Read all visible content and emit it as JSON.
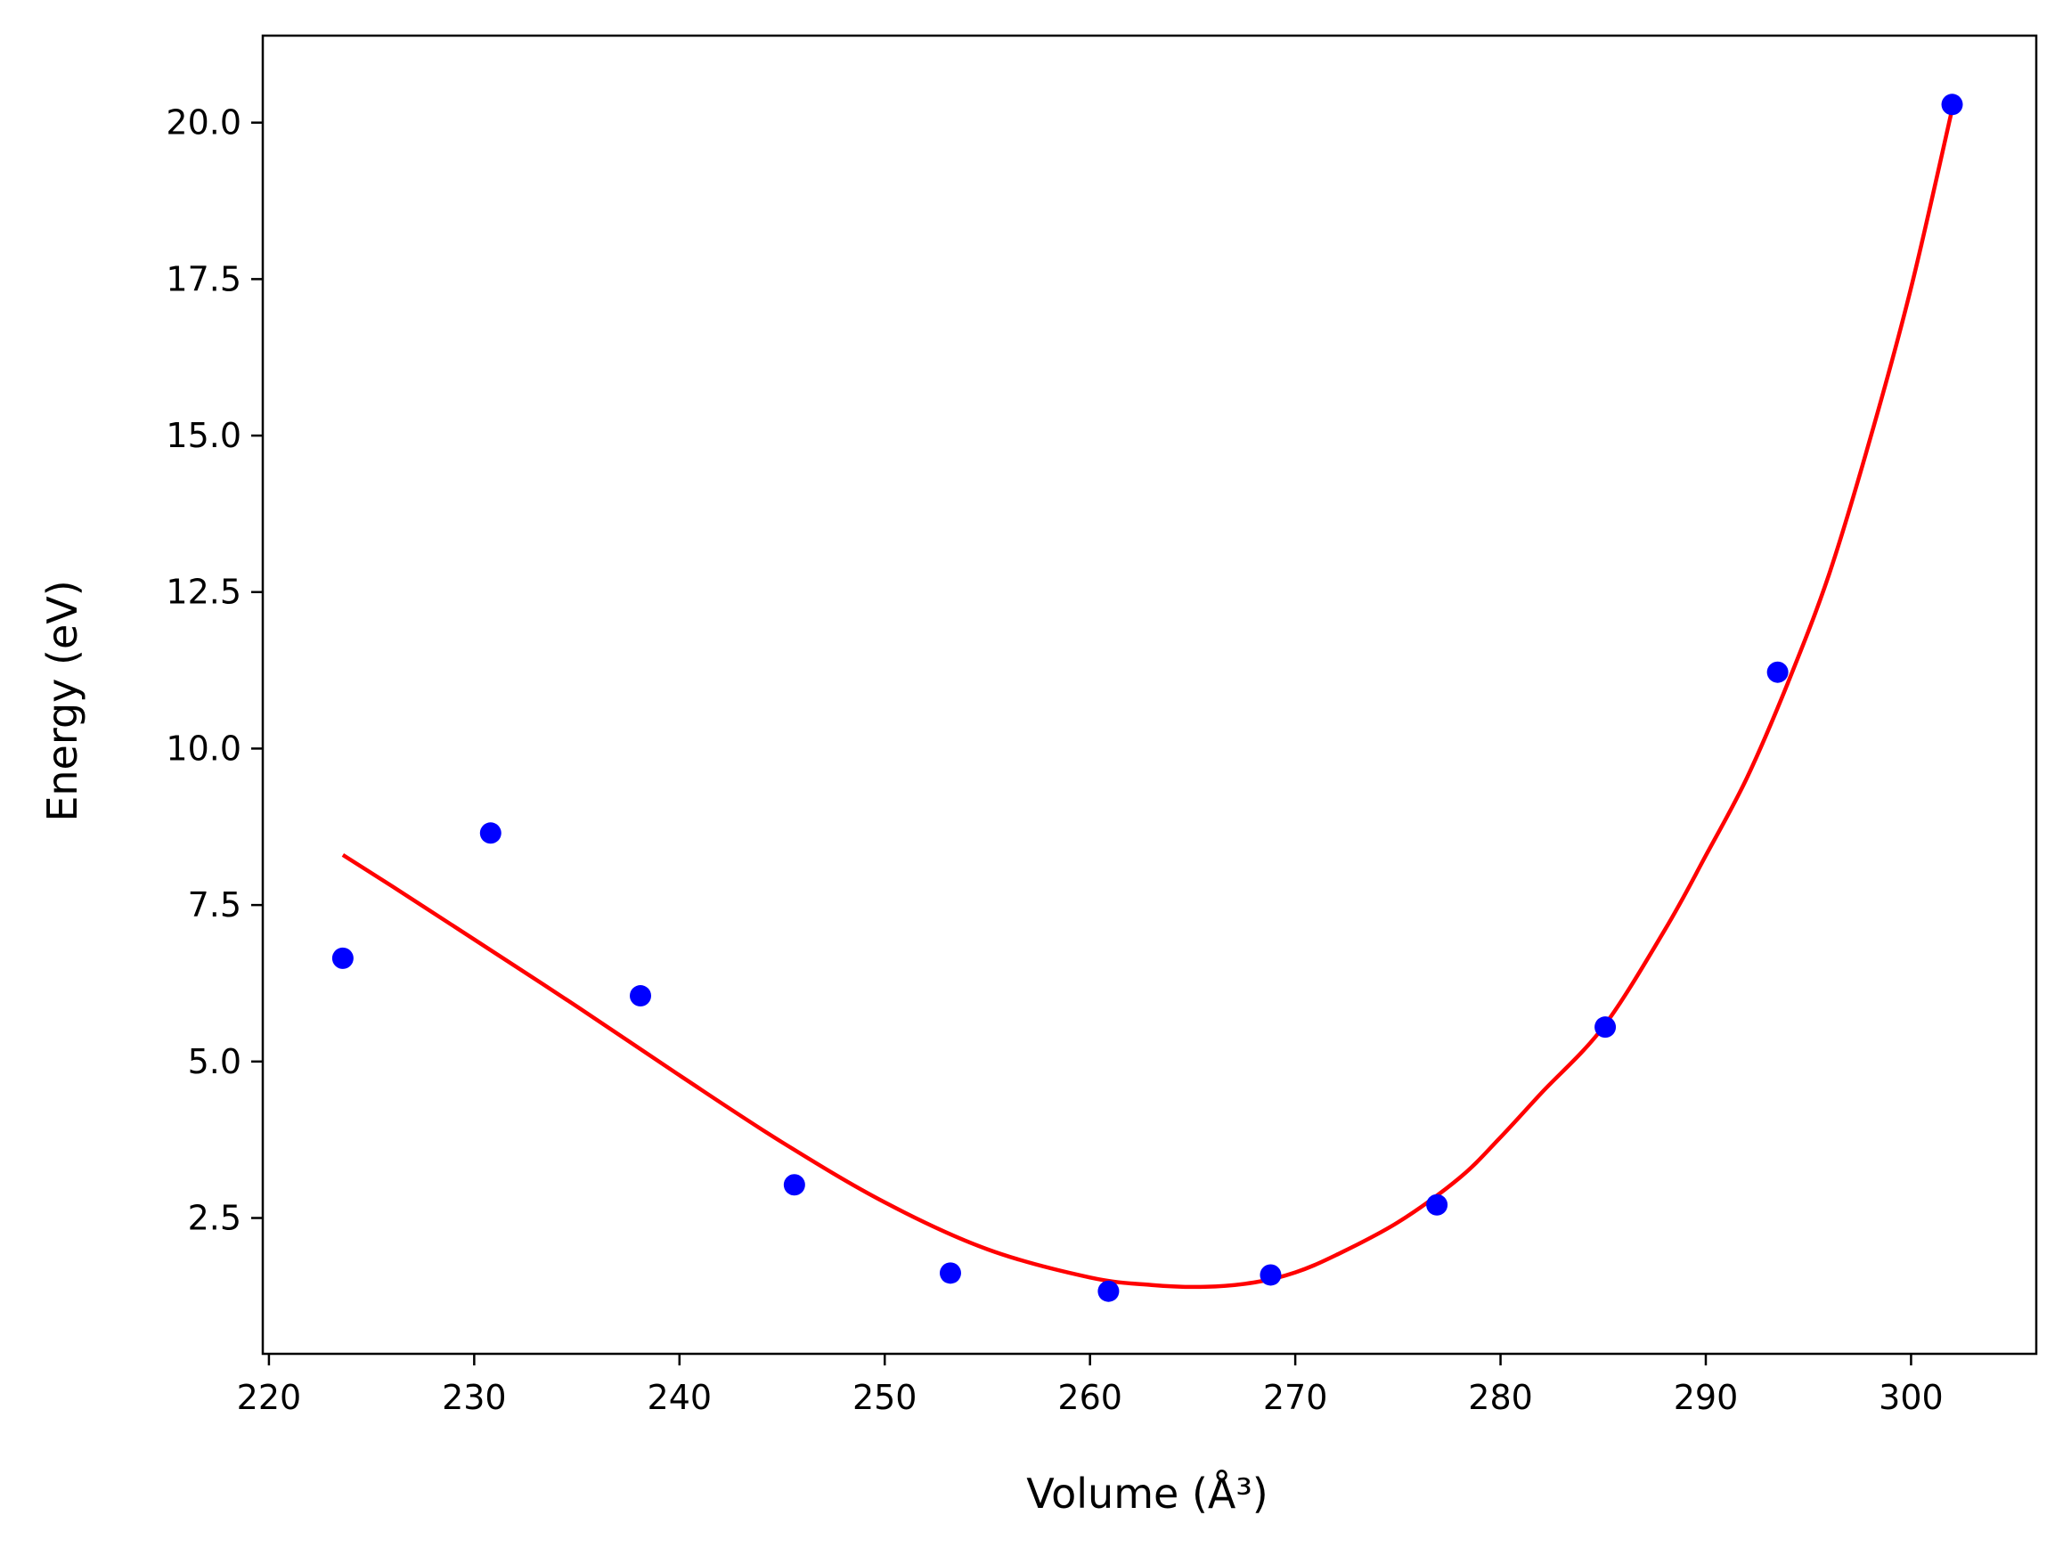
{
  "chart_data": {
    "type": "scatter",
    "xlabel": "Volume (Å³)",
    "ylabel": "Energy (eV)",
    "xlim": [
      219.7,
      306.1
    ],
    "ylim": [
      0.33,
      21.39
    ],
    "xticks": [
      220,
      230,
      240,
      250,
      260,
      270,
      280,
      290,
      300
    ],
    "xtick_labels": [
      "220",
      "230",
      "240",
      "250",
      "260",
      "270",
      "280",
      "290",
      "300"
    ],
    "yticks": [
      2.5,
      5.0,
      7.5,
      10.0,
      12.5,
      15.0,
      17.5,
      20.0
    ],
    "ytick_labels": [
      "2.5",
      "5.0",
      "7.5",
      "10.0",
      "12.5",
      "15.0",
      "17.5",
      "20.0"
    ],
    "grid": false,
    "series": [
      {
        "kind": "points",
        "color": "#0000ff",
        "x": [
          223.6,
          230.8,
          238.1,
          245.6,
          253.2,
          260.9,
          268.8,
          276.9,
          285.1,
          293.5,
          302.0
        ],
        "y": [
          6.65,
          8.65,
          6.05,
          3.03,
          1.62,
          1.33,
          1.59,
          2.71,
          5.55,
          11.22,
          20.29
        ]
      },
      {
        "kind": "fit-curve",
        "color": "#ff0000",
        "x": [
          223.6,
          226.0,
          230.0,
          235.0,
          240.0,
          245.0,
          250.0,
          255.0,
          260.0,
          263.0,
          265.6,
          268.0,
          270.0,
          272.0,
          275.0,
          278.0,
          280.0,
          282.0,
          285.0,
          288.0,
          290.0,
          292.0,
          294.0,
          296.0,
          298.0,
          300.0,
          302.0
        ],
        "y": [
          8.3,
          7.8,
          6.95,
          5.88,
          4.78,
          3.71,
          2.75,
          2.0,
          1.55,
          1.43,
          1.4,
          1.47,
          1.63,
          1.91,
          2.43,
          3.14,
          3.79,
          4.5,
          5.55,
          7.1,
          8.29,
          9.53,
          11.05,
          12.78,
          14.94,
          17.36,
          20.21
        ]
      }
    ]
  }
}
